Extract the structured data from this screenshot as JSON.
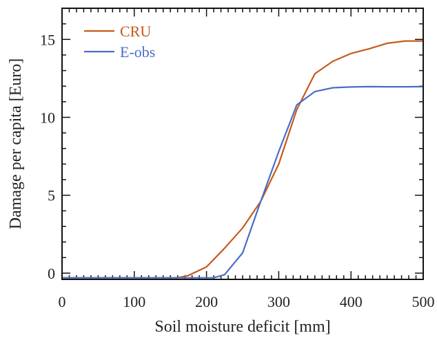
{
  "chart_data": {
    "type": "line",
    "title": "",
    "xlabel": "Soil moisture deficit [mm]",
    "ylabel": "Damage per capita [Euro]",
    "xlim": [
      0,
      500
    ],
    "ylim": [
      -0.4,
      17
    ],
    "xticks": [
      0,
      100,
      200,
      300,
      400,
      500
    ],
    "yticks": [
      0,
      5,
      10,
      15
    ],
    "grid": false,
    "legend_position": "top-left",
    "series": [
      {
        "name": "CRU",
        "color": "#c8581b",
        "x": [
          0,
          150,
          160,
          175,
          200,
          225,
          250,
          275,
          300,
          325,
          350,
          375,
          400,
          425,
          450,
          475,
          500
        ],
        "y": [
          -0.3,
          -0.3,
          -0.3,
          -0.15,
          0.4,
          1.6,
          2.9,
          4.6,
          7.0,
          10.5,
          12.8,
          13.6,
          14.1,
          14.4,
          14.75,
          14.9,
          14.9
        ]
      },
      {
        "name": "E-obs",
        "color": "#4a6cc6",
        "x": [
          0,
          200,
          210,
          225,
          250,
          275,
          300,
          325,
          350,
          375,
          400,
          425,
          450,
          475,
          500
        ],
        "y": [
          -0.3,
          -0.3,
          -0.3,
          -0.1,
          1.3,
          4.6,
          7.8,
          10.8,
          11.65,
          11.9,
          11.95,
          11.97,
          11.96,
          11.96,
          11.97
        ]
      }
    ]
  }
}
